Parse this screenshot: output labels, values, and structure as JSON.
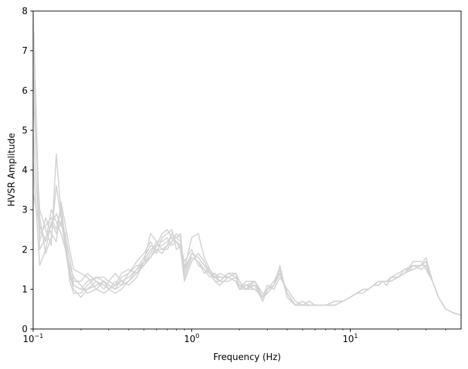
{
  "chart_data": {
    "type": "line",
    "xlabel": "Frequency (Hz)",
    "ylabel": "HVSR Amplitude",
    "xscale": "log",
    "xlim": [
      0.1,
      50
    ],
    "ylim": [
      0,
      8
    ],
    "grid": false,
    "legend": "none",
    "line_color": "#d3d3d3",
    "x_ticks": [
      {
        "value": 0.1,
        "base": "10",
        "exp": "−1"
      },
      {
        "value": 1,
        "base": "10",
        "exp": "0"
      },
      {
        "value": 10,
        "base": "10",
        "exp": "1"
      }
    ],
    "y_ticks": [
      0,
      1,
      2,
      3,
      4,
      5,
      6,
      7,
      8
    ],
    "x": [
      0.1,
      0.11,
      0.12,
      0.13,
      0.14,
      0.15,
      0.16,
      0.17,
      0.18,
      0.2,
      0.22,
      0.25,
      0.28,
      0.3,
      0.33,
      0.36,
      0.4,
      0.45,
      0.5,
      0.55,
      0.6,
      0.65,
      0.7,
      0.75,
      0.8,
      0.85,
      0.9,
      1.0,
      1.1,
      1.2,
      1.3,
      1.4,
      1.5,
      1.7,
      1.9,
      2.0,
      2.2,
      2.5,
      2.8,
      3.0,
      3.3,
      3.6,
      4.0,
      4.5,
      5.0,
      5.5,
      6.0,
      7.0,
      8.0,
      9.0,
      10,
      11,
      12,
      13,
      14,
      15,
      16,
      17,
      18,
      20,
      22,
      25,
      28,
      30,
      33,
      36,
      40,
      45,
      50
    ],
    "series": [
      {
        "values": [
          8.0,
          2.4,
          2.6,
          2.8,
          2.5,
          3.1,
          2.2,
          1.5,
          1.1,
          1.0,
          1.0,
          1.2,
          1.1,
          1.0,
          1.1,
          1.2,
          1.3,
          1.5,
          1.7,
          2.0,
          2.1,
          2.1,
          2.2,
          2.3,
          2.2,
          2.1,
          1.6,
          1.8,
          1.7,
          1.5,
          1.4,
          1.3,
          1.3,
          1.3,
          1.2,
          1.1,
          1.1,
          1.1,
          0.8,
          0.9,
          1.1,
          1.4,
          0.9,
          0.6,
          0.6,
          0.6,
          0.6,
          0.6,
          0.6,
          0.7,
          0.8,
          0.9,
          1.0,
          1.0,
          1.1,
          1.1,
          1.2,
          1.2,
          1.2,
          1.3,
          1.4,
          1.6,
          1.6,
          1.7,
          1.2,
          0.8,
          0.5,
          0.4,
          0.35
        ]
      },
      {
        "values": [
          7.5,
          2.0,
          2.3,
          2.6,
          2.9,
          2.6,
          2.4,
          1.2,
          0.9,
          0.9,
          1.1,
          1.3,
          1.2,
          1.1,
          1.0,
          1.1,
          1.2,
          1.4,
          1.6,
          1.8,
          2.0,
          2.0,
          2.1,
          2.4,
          2.3,
          2.2,
          1.4,
          1.9,
          1.8,
          1.6,
          1.5,
          1.2,
          1.2,
          1.4,
          1.4,
          1.0,
          1.0,
          1.2,
          0.7,
          1.0,
          1.2,
          1.5,
          0.8,
          0.6,
          0.6,
          0.7,
          0.6,
          0.6,
          0.7,
          0.7,
          0.8,
          0.9,
          1.0,
          1.0,
          1.1,
          1.2,
          1.2,
          1.1,
          1.3,
          1.3,
          1.4,
          1.5,
          1.6,
          1.8,
          1.2,
          0.8,
          0.5,
          0.4,
          0.35
        ]
      },
      {
        "values": [
          6.5,
          2.8,
          1.9,
          2.3,
          3.6,
          2.8,
          2.0,
          1.6,
          1.3,
          1.1,
          0.9,
          1.0,
          1.2,
          1.1,
          1.0,
          1.3,
          1.4,
          1.7,
          1.9,
          2.2,
          1.9,
          2.3,
          2.4,
          2.5,
          2.0,
          2.1,
          1.7,
          2.0,
          1.6,
          1.5,
          1.3,
          1.4,
          1.2,
          1.4,
          1.3,
          1.1,
          1.0,
          1.0,
          0.8,
          1.1,
          1.0,
          1.3,
          1.0,
          0.7,
          0.6,
          0.6,
          0.6,
          0.6,
          0.6,
          0.7,
          0.8,
          0.9,
          1.0,
          1.0,
          1.1,
          1.1,
          1.2,
          1.2,
          1.3,
          1.4,
          1.5,
          1.6,
          1.5,
          1.6,
          1.2,
          0.8,
          0.5,
          0.4,
          0.35
        ]
      },
      {
        "values": [
          5.8,
          3.0,
          2.5,
          2.1,
          4.4,
          2.9,
          2.3,
          1.8,
          1.2,
          1.2,
          1.4,
          1.2,
          1.0,
          1.2,
          1.4,
          1.2,
          1.1,
          1.3,
          1.7,
          2.4,
          2.2,
          2.0,
          2.0,
          2.2,
          2.4,
          2.3,
          1.5,
          2.3,
          2.4,
          1.8,
          1.5,
          1.3,
          1.4,
          1.3,
          1.2,
          1.0,
          1.1,
          1.2,
          0.9,
          0.9,
          1.1,
          1.6,
          0.8,
          0.6,
          0.7,
          0.6,
          0.6,
          0.6,
          0.7,
          0.7,
          0.8,
          0.9,
          0.9,
          1.0,
          1.1,
          1.1,
          1.2,
          1.2,
          1.2,
          1.3,
          1.4,
          1.7,
          1.7,
          1.5,
          1.2,
          0.8,
          0.5,
          0.4,
          0.35
        ]
      },
      {
        "values": [
          5.0,
          2.2,
          2.8,
          2.4,
          2.2,
          3.2,
          2.6,
          2.0,
          1.5,
          1.4,
          1.3,
          1.0,
          0.9,
          1.0,
          1.2,
          1.1,
          1.4,
          1.6,
          1.6,
          1.9,
          2.2,
          2.2,
          2.3,
          2.1,
          2.2,
          2.0,
          1.2,
          1.7,
          1.9,
          1.7,
          1.4,
          1.2,
          1.1,
          1.3,
          1.4,
          1.2,
          1.0,
          1.1,
          0.7,
          1.0,
          1.2,
          1.4,
          0.9,
          0.6,
          0.6,
          0.7,
          0.6,
          0.6,
          0.6,
          0.7,
          0.8,
          0.9,
          1.0,
          1.0,
          1.1,
          1.2,
          1.2,
          1.2,
          1.3,
          1.3,
          1.5,
          1.5,
          1.6,
          1.7,
          1.2,
          0.8,
          0.5,
          0.4,
          0.35
        ]
      },
      {
        "values": [
          4.2,
          1.6,
          2.0,
          2.7,
          2.4,
          2.7,
          2.2,
          1.4,
          1.0,
          0.8,
          1.0,
          1.1,
          1.2,
          1.0,
          0.9,
          1.0,
          1.2,
          1.5,
          1.8,
          2.1,
          2.0,
          1.9,
          2.1,
          2.2,
          2.3,
          2.4,
          1.3,
          1.8,
          1.7,
          1.4,
          1.5,
          1.3,
          1.2,
          1.2,
          1.3,
          1.1,
          1.1,
          1.0,
          0.8,
          0.9,
          1.1,
          1.4,
          0.9,
          0.6,
          0.6,
          0.6,
          0.6,
          0.6,
          0.6,
          0.7,
          0.8,
          0.9,
          1.0,
          1.0,
          1.1,
          1.1,
          1.2,
          1.2,
          1.2,
          1.3,
          1.4,
          1.6,
          1.6,
          1.6,
          1.2,
          0.8,
          0.5,
          0.4,
          0.35
        ]
      },
      {
        "values": [
          3.4,
          2.6,
          2.2,
          3.0,
          2.7,
          2.4,
          2.0,
          1.3,
          1.1,
          1.0,
          1.2,
          1.3,
          1.3,
          1.2,
          1.1,
          1.4,
          1.5,
          1.4,
          1.7,
          1.8,
          2.1,
          2.4,
          2.5,
          2.3,
          2.2,
          2.1,
          1.5,
          1.9,
          1.8,
          1.6,
          1.4,
          1.4,
          1.3,
          1.3,
          1.2,
          1.0,
          1.2,
          1.2,
          0.8,
          1.0,
          1.1,
          1.5,
          0.9,
          0.6,
          0.6,
          0.6,
          0.6,
          0.6,
          0.6,
          0.7,
          0.8,
          0.9,
          1.0,
          1.0,
          1.1,
          1.1,
          1.2,
          1.2,
          1.2,
          1.3,
          1.4,
          1.6,
          1.6,
          1.7,
          1.2,
          0.8,
          0.5,
          0.4,
          0.35
        ]
      }
    ]
  }
}
